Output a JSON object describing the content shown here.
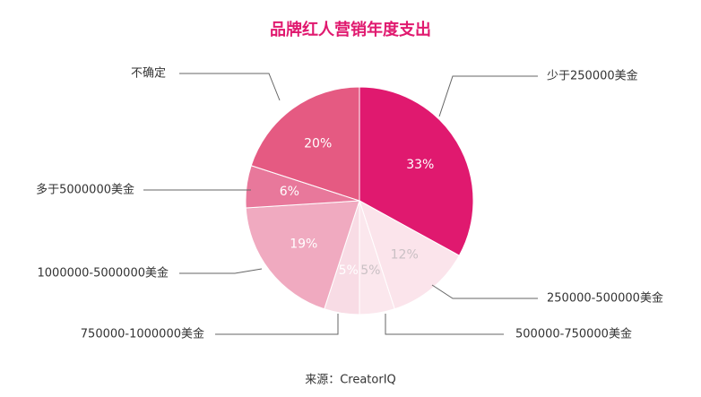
{
  "chart_data": {
    "type": "pie",
    "title": "品牌红人营销年度支出",
    "source": "来源：CreatorIQ",
    "categories": [
      "少于250000美金",
      "250000-500000美金",
      "500000-750000美金",
      "750000-1000000美金",
      "1000000-5000000美金",
      "多于5000000美金",
      "不确定"
    ],
    "values": [
      33,
      12,
      5,
      5,
      19,
      6,
      20
    ],
    "value_labels": [
      "33%",
      "12%",
      "5%",
      "5%",
      "19%",
      "6%",
      "20%"
    ],
    "colors": [
      "#e0196f",
      "#fbe4eb",
      "#fbe7ed",
      "#f8dce5",
      "#f0aac0",
      "#e8789b",
      "#e55a82"
    ]
  }
}
